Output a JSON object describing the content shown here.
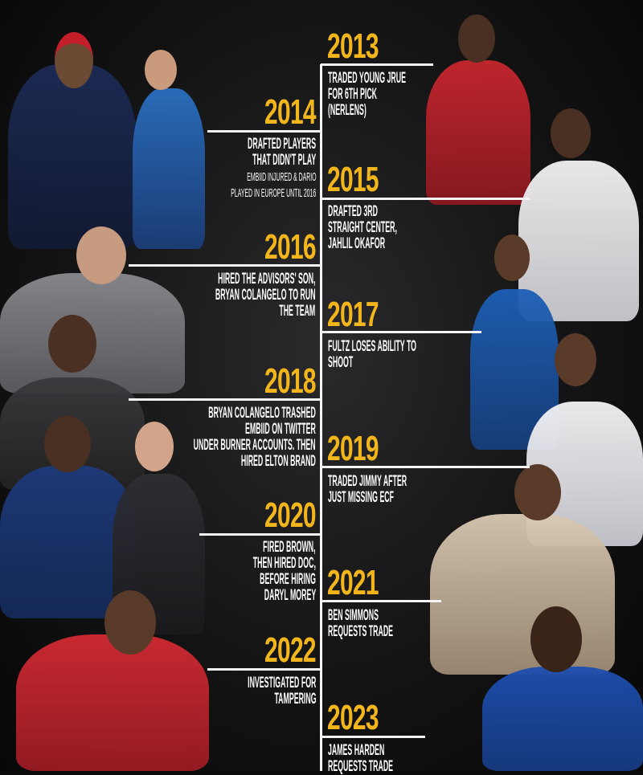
{
  "accent_color": "#f2b61c",
  "line_color": "#f4f4f4",
  "timeline": [
    {
      "year": "2013",
      "lines": [
        "Traded young Jrue",
        "for 6th pick",
        "(Nerlens)"
      ]
    },
    {
      "year": "2014",
      "lines": [
        "Drafted players",
        "that didn't play"
      ],
      "sub": [
        "Embiid injured & Dario",
        "played in Europe until 2016"
      ]
    },
    {
      "year": "2015",
      "lines": [
        "Drafted 3rd",
        "straight center,",
        "Jahlil Okafor"
      ]
    },
    {
      "year": "2016",
      "lines": [
        "Hired the advisors' son,",
        "Bryan Colangelo to run",
        "the team"
      ]
    },
    {
      "year": "2017",
      "lines": [
        "Fultz loses ability to",
        "shoot"
      ]
    },
    {
      "year": "2018",
      "lines": [
        "Bryan Colangelo trashed",
        "Embiid on Twitter",
        "under burner accounts. Then",
        "hired Elton Brand"
      ]
    },
    {
      "year": "2019",
      "lines": [
        "Traded Jimmy after",
        "just missing ECF"
      ]
    },
    {
      "year": "2020",
      "lines": [
        "Fired Brown,",
        "then hired Doc,",
        "before hiring",
        "Daryl Morey"
      ]
    },
    {
      "year": "2021",
      "lines": [
        "Ben Simmons",
        "requests trade"
      ]
    },
    {
      "year": "2022",
      "lines": [
        "Investigated for",
        "tampering"
      ]
    },
    {
      "year": "2023",
      "lines": [
        "James Harden",
        "requests trade"
      ]
    }
  ]
}
